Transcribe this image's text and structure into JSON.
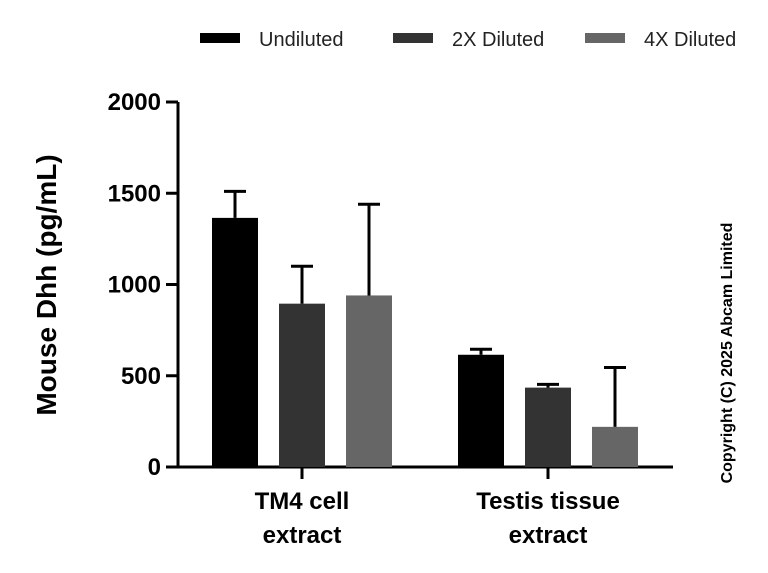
{
  "chart_data": {
    "type": "bar",
    "ylabel": "Mouse Dhh (pg/mL)",
    "xlabel": "",
    "ylim": [
      0,
      2000
    ],
    "yticks": [
      "0",
      "500",
      "1000",
      "1500",
      "2000"
    ],
    "ytick_values": [
      0,
      500,
      1000,
      1500,
      2000
    ],
    "categories": [
      [
        "TM4 cell",
        "extract"
      ],
      [
        "Testis tissue",
        "extract"
      ]
    ],
    "series": [
      {
        "name": "Undiluted",
        "color": "#000000",
        "values": [
          1365,
          615
        ],
        "errors": [
          145,
          30
        ]
      },
      {
        "name": "2X Diluted",
        "color": "#333333",
        "values": [
          895,
          435
        ],
        "errors": [
          205,
          18
        ]
      },
      {
        "name": "4X Diluted",
        "color": "#666666",
        "values": [
          940,
          220
        ],
        "errors": [
          500,
          325
        ]
      }
    ],
    "legend_position": "top",
    "copyright": "Copyright (C) 2025 Abcam Limited"
  }
}
